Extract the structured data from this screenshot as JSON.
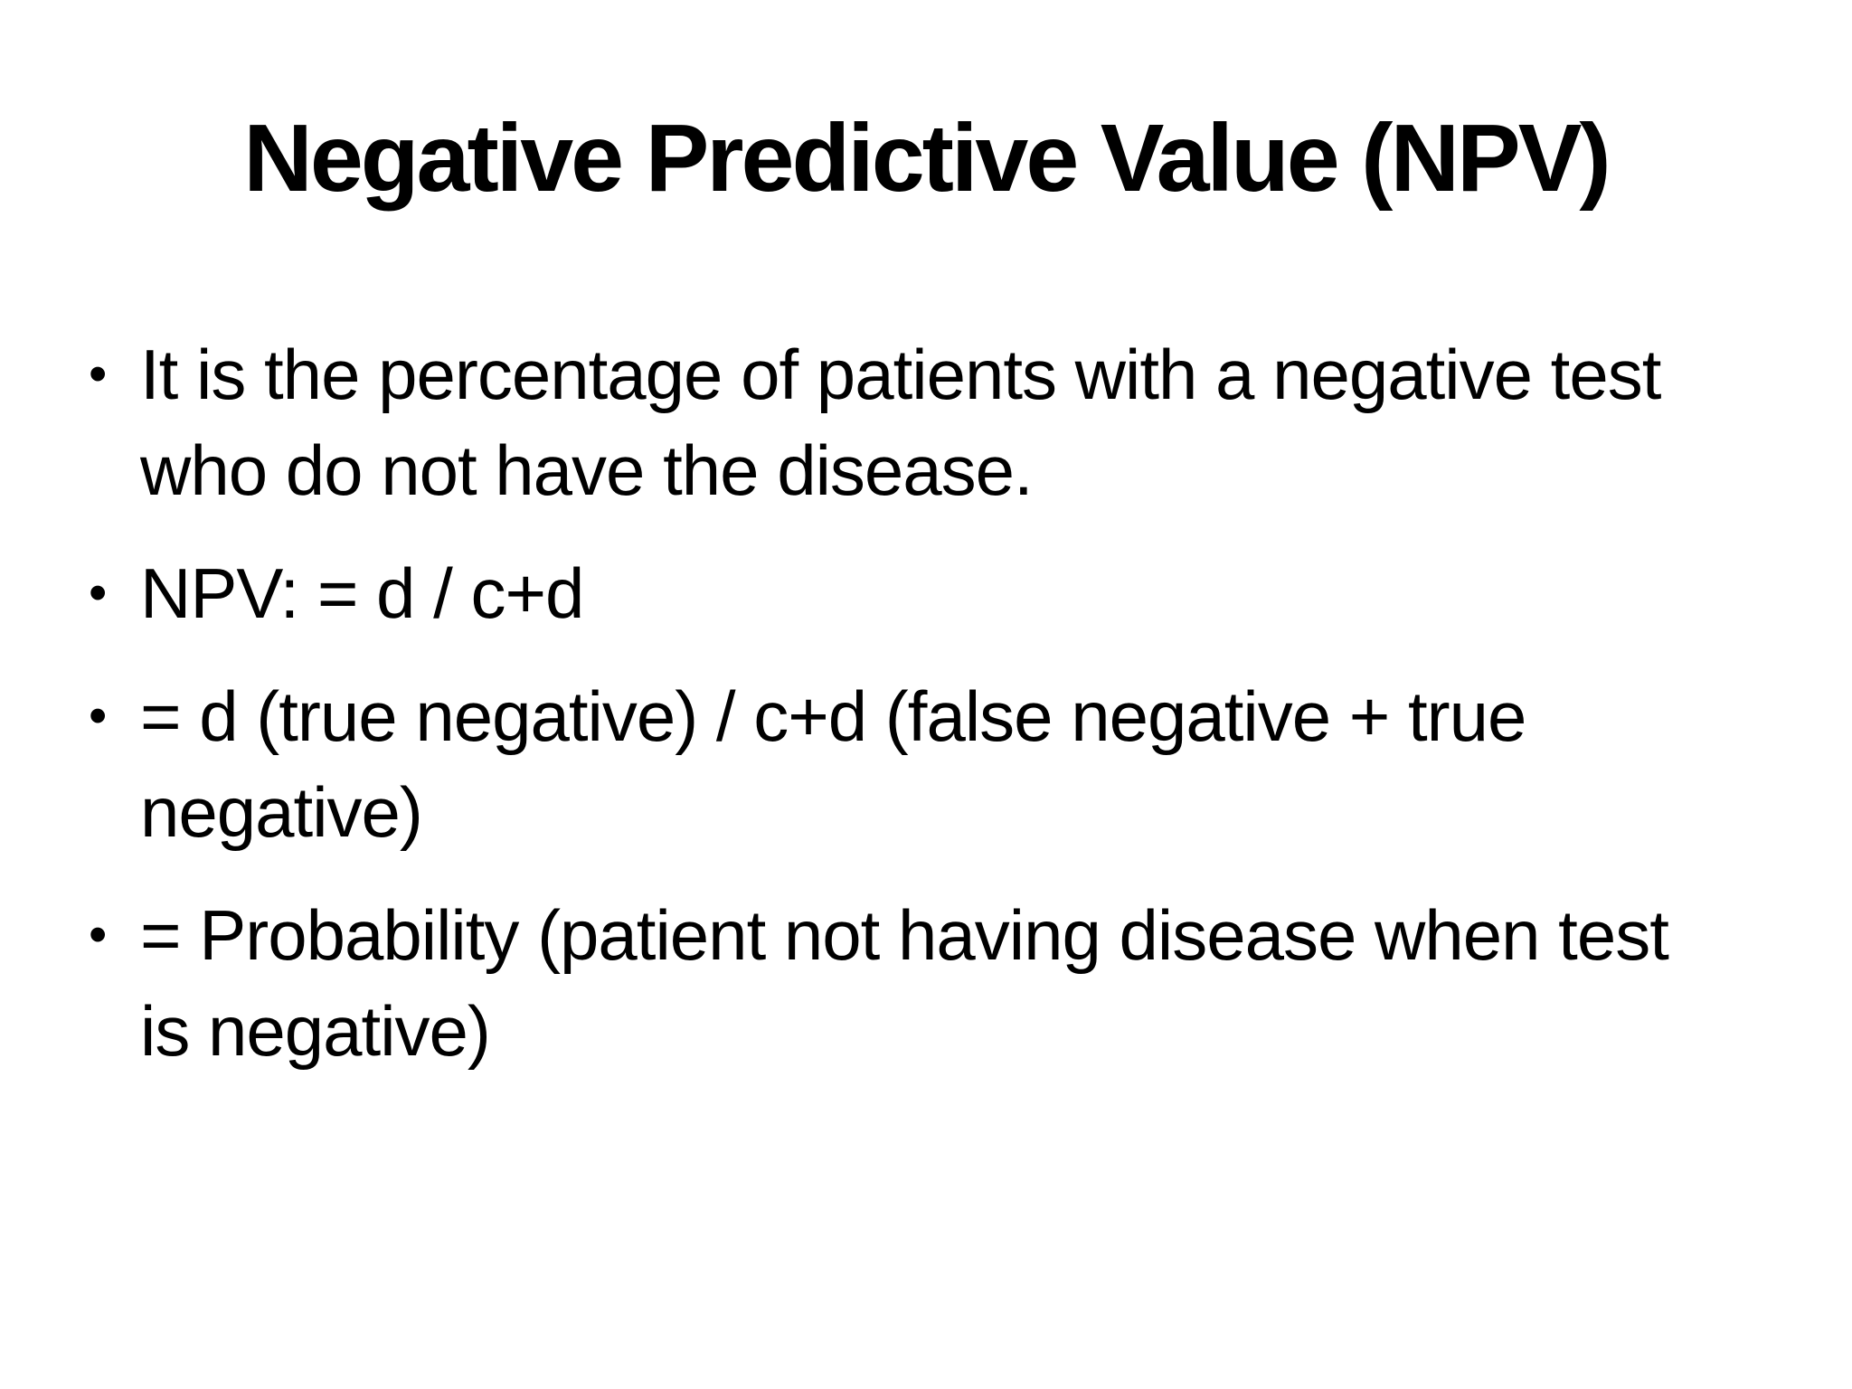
{
  "slide": {
    "title": "Negative Predictive Value (NPV)",
    "bullet_char": "•",
    "bullets": [
      {
        "text": "It is the percentage of patients with a negative test who do not have the disease."
      },
      {
        "text": "NPV: = d / c+d"
      },
      {
        "text": "= d (true negative) / c+d (false negative + true negative)"
      },
      {
        "text": "= Probability (patient not having disease when test is negative)"
      }
    ],
    "colors": {
      "background": "#ffffff",
      "text": "#000000"
    }
  }
}
